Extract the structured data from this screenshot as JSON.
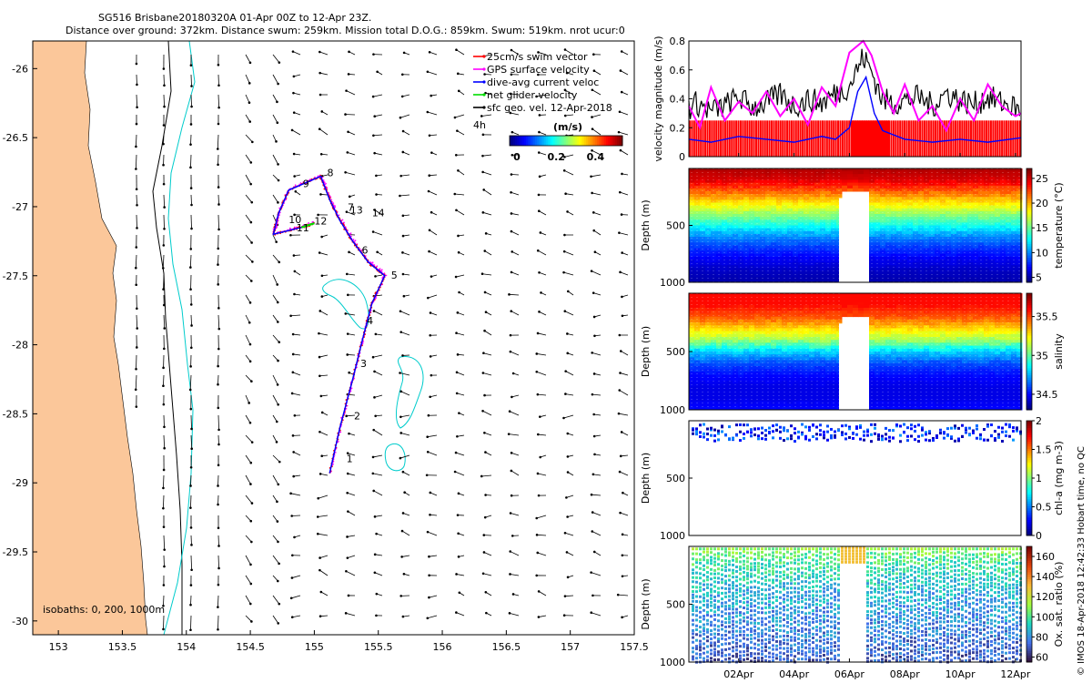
{
  "header": {
    "title_line1": "SG516 Brisbane20180320A 01-Apr 00Z to 12-Apr 23Z.",
    "title_line2": "Distance over ground: 372km. Distance swum: 259km. Mission total D.O.G.: 859km. Swum: 519km. nrot ucur:0"
  },
  "side_note": "© IMOS 18-Apr-2018 12:42:33 Hobart time, no QC",
  "chart_data": [
    {
      "type": "map",
      "name": "glider-track-map",
      "xlim": [
        152.8,
        157.5
      ],
      "ylim": [
        -30.1,
        -25.8
      ],
      "x_ticks": [
        153,
        153.5,
        154,
        154.5,
        155,
        155.5,
        156,
        156.5,
        157,
        157.5
      ],
      "x_tick_labels": [
        "153",
        "153.5",
        "154",
        "154.5",
        "155",
        "155.5",
        "156",
        "156.5",
        "157",
        "157.5"
      ],
      "y_ticks": [
        -26,
        -26.5,
        -27,
        -27.5,
        -28,
        -28.5,
        -29,
        -29.5,
        -30
      ],
      "y_tick_labels": [
        "-26",
        "-26.5",
        "-27",
        "-27.5",
        "-28",
        "-28.5",
        "-29",
        "-29.5",
        "-30"
      ],
      "legend": [
        {
          "label": "25cm/s swim vector",
          "color": "#ff0000"
        },
        {
          "label": "GPS surface velocity",
          "color": "#ff00ff"
        },
        {
          "label": "dive-avg current veloc",
          "color": "#0000ff"
        },
        {
          "label": "net glider velocity",
          "color": "#00dd00"
        },
        {
          "label": "sfc geo. vel. 12-Apr-2018",
          "color": "#000000"
        }
      ],
      "legend_extra_label": "4h",
      "colorbar": {
        "label": "(m/s)",
        "ticks": [
          0,
          0.2,
          0.4
        ],
        "tick_labels": [
          "0",
          "0.2",
          "0.4"
        ],
        "range": [
          0,
          0.5
        ]
      },
      "isobath_label": "isobaths: 0, 200, 1000m",
      "track": [
        [
          155.12,
          -28.93
        ],
        [
          155.2,
          -28.6
        ],
        [
          155.3,
          -28.25
        ],
        [
          155.38,
          -27.95
        ],
        [
          155.45,
          -27.7
        ],
        [
          155.55,
          -27.5
        ],
        [
          155.42,
          -27.4
        ],
        [
          155.3,
          -27.25
        ],
        [
          155.2,
          -27.1
        ],
        [
          155.12,
          -26.95
        ],
        [
          155.05,
          -26.78
        ],
        [
          154.8,
          -26.88
        ],
        [
          154.72,
          -27.05
        ],
        [
          154.68,
          -27.2
        ],
        [
          154.9,
          -27.15
        ],
        [
          155.0,
          -27.12
        ]
      ],
      "day_labels": [
        {
          "label": "1",
          "lon": 155.25,
          "lat": -28.85
        },
        {
          "label": "2",
          "lon": 155.31,
          "lat": -28.54
        },
        {
          "label": "3",
          "lon": 155.36,
          "lat": -28.16
        },
        {
          "label": "4",
          "lon": 155.41,
          "lat": -27.85
        },
        {
          "label": "5",
          "lon": 155.6,
          "lat": -27.52
        },
        {
          "label": "6",
          "lon": 155.37,
          "lat": -27.34
        },
        {
          "label": "7",
          "lon": 155.26,
          "lat": -27.03
        },
        {
          "label": "8",
          "lon": 155.1,
          "lat": -26.78
        },
        {
          "label": "9",
          "lon": 154.91,
          "lat": -26.86
        },
        {
          "label": "10",
          "lon": 154.8,
          "lat": -27.12
        },
        {
          "label": "11",
          "lon": 154.86,
          "lat": -27.18
        },
        {
          "label": "12",
          "lon": 155.0,
          "lat": -27.13
        },
        {
          "label": "13",
          "lon": 155.28,
          "lat": -27.05
        },
        {
          "label": "14",
          "lon": 155.45,
          "lat": -27.07
        }
      ]
    },
    {
      "type": "line",
      "name": "velocity-panel",
      "ylabel": "velocity magnitude (m/s)",
      "ylim": [
        0,
        0.8
      ],
      "y_ticks": [
        0,
        0.2,
        0.4,
        0.6,
        0.8
      ],
      "y_tick_labels": [
        "0",
        "0.2",
        "0.4",
        "0.6",
        "0.8"
      ],
      "x_range_days": [
        0.2,
        12.2
      ],
      "x_ticks": [
        2,
        4,
        6,
        8,
        10,
        12
      ],
      "x_tick_labels": [
        "02Apr",
        "04Apr",
        "06Apr",
        "08Apr",
        "10Apr",
        "12Apr"
      ],
      "swim_speed_bars": 0.25,
      "series": [
        {
          "name": "gps-surface-velocity",
          "color": "#ff00ff",
          "x": [
            0.2,
            0.6,
            1.0,
            1.5,
            2.0,
            2.5,
            3.0,
            3.5,
            4.0,
            4.5,
            5.0,
            5.5,
            6.0,
            6.5,
            6.8,
            7.2,
            7.6,
            8.0,
            8.5,
            9.0,
            9.5,
            10.0,
            10.5,
            11.0,
            11.5,
            12.0,
            12.2
          ],
          "values": [
            0.35,
            0.2,
            0.48,
            0.25,
            0.38,
            0.3,
            0.45,
            0.28,
            0.4,
            0.22,
            0.48,
            0.35,
            0.72,
            0.8,
            0.7,
            0.45,
            0.3,
            0.5,
            0.25,
            0.35,
            0.18,
            0.4,
            0.25,
            0.5,
            0.35,
            0.28,
            0.3
          ]
        },
        {
          "name": "dive-avg-current",
          "color": "#0000ff",
          "x": [
            0.2,
            1.0,
            2.0,
            3.0,
            4.0,
            5.0,
            5.5,
            6.0,
            6.3,
            6.6,
            6.9,
            7.2,
            8.0,
            9.0,
            10.0,
            11.0,
            12.2
          ],
          "values": [
            0.12,
            0.1,
            0.14,
            0.12,
            0.1,
            0.14,
            0.12,
            0.2,
            0.45,
            0.55,
            0.3,
            0.18,
            0.12,
            0.1,
            0.12,
            0.1,
            0.13
          ]
        },
        {
          "name": "net-glider-velocity",
          "color": "#000000",
          "x": [
            0.2,
            0.5,
            1.0,
            1.5,
            2.0,
            2.5,
            3.0,
            3.5,
            4.0,
            4.5,
            5.0,
            5.5,
            6.0,
            6.5,
            6.8,
            7.2,
            7.6,
            8.0,
            8.5,
            9.0,
            9.5,
            10.0,
            10.5,
            11.0,
            11.5,
            12.0,
            12.2
          ],
          "values": [
            0.35,
            0.38,
            0.32,
            0.36,
            0.42,
            0.35,
            0.38,
            0.44,
            0.36,
            0.4,
            0.38,
            0.45,
            0.5,
            0.7,
            0.6,
            0.4,
            0.38,
            0.4,
            0.42,
            0.36,
            0.45,
            0.4,
            0.37,
            0.42,
            0.38,
            0.35,
            0.3
          ]
        }
      ]
    },
    {
      "type": "heatmap",
      "name": "temperature-section",
      "ylabel": "Depth (m)",
      "cbar_label": "temperature (°C)",
      "ylim": [
        0,
        1000
      ],
      "y_ticks": [
        500,
        1000
      ],
      "y_tick_labels": [
        "500",
        "1000"
      ],
      "cbar_range": [
        4,
        27
      ],
      "cbar_ticks": [
        5,
        10,
        15,
        20,
        25
      ],
      "cbar_tick_labels": [
        "5",
        "10",
        "15",
        "20",
        "25"
      ],
      "profile_depth_m": [
        0,
        100,
        200,
        300,
        400,
        500,
        600,
        700,
        800,
        900,
        1000
      ],
      "profile_values": [
        26,
        25,
        22,
        19,
        16,
        13,
        10,
        8,
        6.5,
        5.5,
        5
      ]
    },
    {
      "type": "heatmap",
      "name": "salinity-section",
      "ylabel": "Depth (m)",
      "cbar_label": "salinity",
      "ylim": [
        0,
        1000
      ],
      "y_ticks": [
        500,
        1000
      ],
      "y_tick_labels": [
        "500",
        "1000"
      ],
      "cbar_range": [
        34.3,
        35.8
      ],
      "cbar_ticks": [
        34.5,
        35,
        35.5
      ],
      "cbar_tick_labels": [
        "34.5",
        "35",
        "35.5"
      ],
      "profile_depth_m": [
        0,
        100,
        200,
        300,
        400,
        500,
        600,
        700,
        800,
        900,
        1000
      ],
      "profile_values": [
        35.6,
        35.6,
        35.5,
        35.3,
        35.1,
        34.8,
        34.6,
        34.5,
        34.45,
        34.45,
        34.5
      ]
    },
    {
      "type": "scatter",
      "name": "chlorophyll-section",
      "ylabel": "Depth (m)",
      "cbar_label": "chl-a (mg m-3)",
      "ylim": [
        0,
        1000
      ],
      "y_ticks": [
        500,
        1000
      ],
      "y_tick_labels": [
        "500",
        "1000"
      ],
      "cbar_range": [
        0,
        2
      ],
      "cbar_ticks": [
        0,
        0.5,
        1,
        1.5,
        2
      ],
      "cbar_tick_labels": [
        "0",
        "0.5",
        "1",
        "1.5",
        "2"
      ],
      "data_depth_range_m": [
        0,
        200
      ],
      "typical_value": 0.2
    },
    {
      "type": "scatter",
      "name": "oxygen-section",
      "ylabel": "Depth (m)",
      "cbar_label": "Ox. sat. ratio (%)",
      "ylim": [
        0,
        1000
      ],
      "y_ticks": [
        500,
        1000
      ],
      "y_tick_labels": [
        "500",
        "1000"
      ],
      "cbar_range": [
        55,
        170
      ],
      "cbar_ticks": [
        60,
        80,
        100,
        120,
        140,
        160
      ],
      "cbar_tick_labels": [
        "60",
        "80",
        "100",
        "120",
        "140",
        "160"
      ],
      "x_ticks": [
        2,
        4,
        6,
        8,
        10,
        12
      ],
      "x_tick_labels": [
        "02Apr",
        "04Apr",
        "06Apr",
        "08Apr",
        "10Apr",
        "12Apr"
      ],
      "profile_depth_m": [
        0,
        100,
        200,
        400,
        600,
        800,
        1000
      ],
      "profile_values": [
        110,
        100,
        95,
        85,
        80,
        75,
        70
      ]
    }
  ]
}
